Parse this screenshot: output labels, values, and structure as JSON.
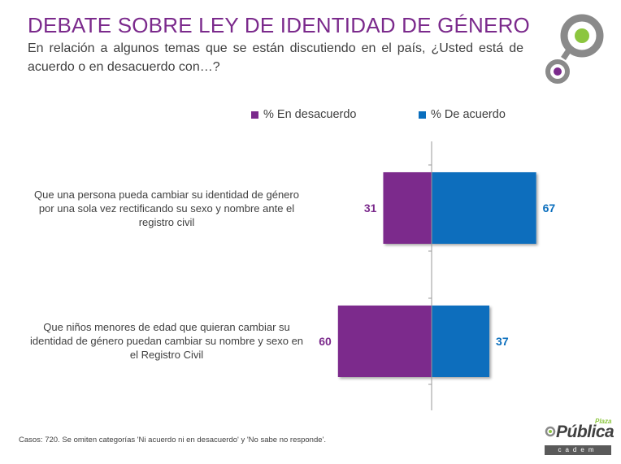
{
  "title": "DEBATE SOBRE LEY DE IDENTIDAD DE GÉNERO",
  "subtitle": "En relación a algunos temas que se están discutiendo en el país, ¿Usted está de acuerdo o en desacuerdo con…?",
  "colors": {
    "title": "#7b2a8c",
    "desacuerdo": "#7b2a8c",
    "acuerdo": "#0a6ebd",
    "logo_green": "#8cc63f",
    "logo_gray": "#8a8a8a"
  },
  "chart_data": {
    "type": "bar",
    "orientation": "horizontal-diverging",
    "legend_position": "top",
    "categories": [
      "Que una persona pueda cambiar su identidad de género por una sola vez rectificando su sexo y nombre ante el registro civil",
      "Que niños menores de edad que quieran cambiar su identidad de género puedan cambiar su nombre y sexo en el Registro Civil"
    ],
    "series": [
      {
        "name": "% En desacuerdo",
        "values": [
          31,
          60
        ],
        "labels": [
          "31",
          "60"
        ],
        "color": "#7b2a8c"
      },
      {
        "name": "% De acuerdo",
        "values": [
          67,
          37
        ],
        "labels": [
          "67",
          "37"
        ],
        "color": "#0a6ebd"
      }
    ]
  },
  "footnote": "Casos: 720. Se omiten categorías 'Ni acuerdo ni en desacuerdo' y 'No sabe no responde'.",
  "logo": {
    "main": "Pública",
    "small": "Plaza",
    "sub": "cadem"
  }
}
